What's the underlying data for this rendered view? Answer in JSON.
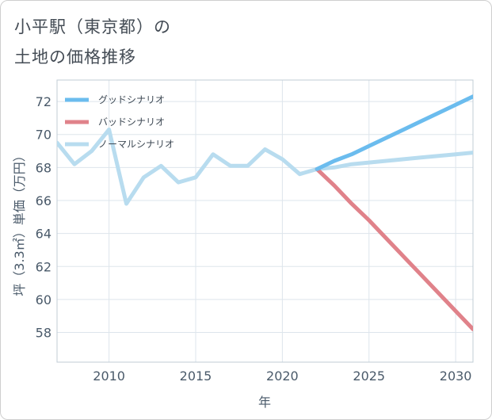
{
  "title_line1": "小平駅（東京都）の",
  "title_line2": "土地の価格推移",
  "chart_data": {
    "type": "line",
    "xlabel": "年",
    "ylabel": "坪（3.3㎡）単価（万円）",
    "xlim": [
      2007,
      2031
    ],
    "ylim": [
      56.2,
      73.3
    ],
    "xticks": [
      2010,
      2015,
      2020,
      2025,
      2030
    ],
    "yticks": [
      58,
      60,
      62,
      64,
      66,
      68,
      70,
      72
    ],
    "grid": true,
    "legend_position": "top-left",
    "series": [
      {
        "name": "グッドシナリオ",
        "color": "#6bbcee",
        "x": [
          2022,
          2023,
          2024,
          2025,
          2026,
          2027,
          2028,
          2029,
          2030,
          2031
        ],
        "values": [
          67.9,
          68.4,
          68.8,
          69.3,
          69.8,
          70.3,
          70.8,
          71.3,
          71.8,
          72.3
        ]
      },
      {
        "name": "バッドシナリオ",
        "color": "#e0828a",
        "x": [
          2022,
          2023,
          2024,
          2025,
          2026,
          2027,
          2028,
          2029,
          2030,
          2031
        ],
        "values": [
          67.9,
          66.9,
          65.8,
          64.8,
          63.7,
          62.6,
          61.5,
          60.4,
          59.3,
          58.2
        ]
      },
      {
        "name": "ノーマルシナリオ",
        "color": "#b8dcef",
        "x": [
          2007,
          2008,
          2009,
          2010,
          2011,
          2012,
          2013,
          2014,
          2015,
          2016,
          2017,
          2018,
          2019,
          2020,
          2021,
          2022,
          2023,
          2024,
          2025,
          2026,
          2027,
          2028,
          2029,
          2030,
          2031
        ],
        "values": [
          69.5,
          68.2,
          69.0,
          70.3,
          65.8,
          67.4,
          68.1,
          67.1,
          67.4,
          68.8,
          68.1,
          68.1,
          69.1,
          68.5,
          67.6,
          67.9,
          68.0,
          68.2,
          68.3,
          68.4,
          68.5,
          68.6,
          68.7,
          68.8,
          68.9
        ]
      }
    ]
  }
}
